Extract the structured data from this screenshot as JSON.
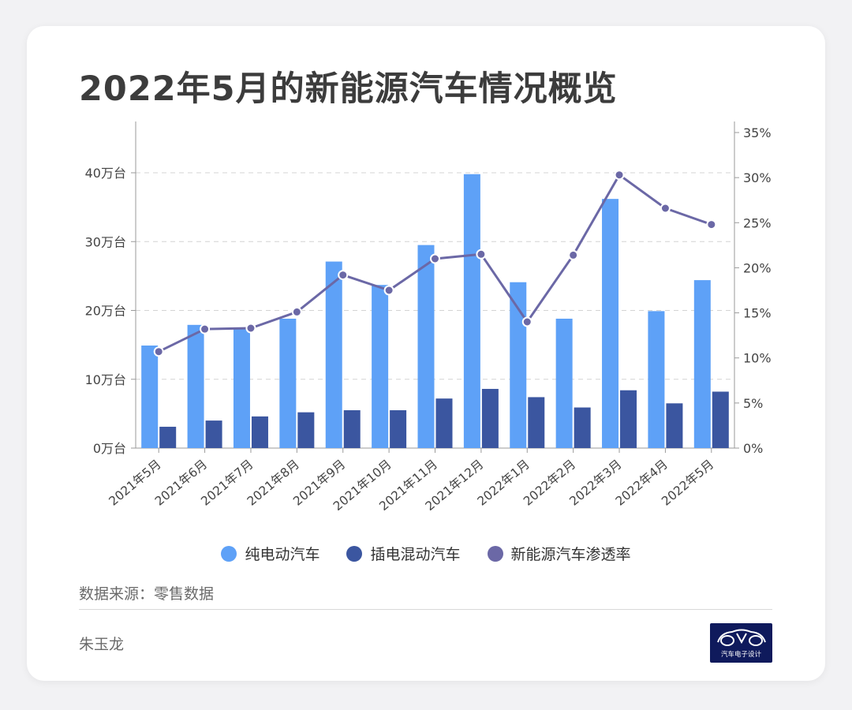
{
  "card": {
    "title": "2022年5月的新能源汽车情况概览",
    "source": "数据来源：零售数据",
    "author": "朱玉龙",
    "logo_text": "汽车电子设计"
  },
  "chart_data": {
    "type": "bar+line",
    "title": "2022年5月的新能源汽车情况概览",
    "categories": [
      "2021年5月",
      "2021年6月",
      "2021年7月",
      "2021年8月",
      "2021年9月",
      "2021年10月",
      "2021年11月",
      "2021年12月",
      "2022年1月",
      "2022年2月",
      "2022年3月",
      "2022年4月",
      "2022年5月"
    ],
    "series": [
      {
        "name": "纯电动汽车",
        "type": "bar",
        "axis": "left",
        "color": "#5ea1f7",
        "values": [
          14.9,
          17.9,
          17.3,
          18.8,
          27.1,
          23.7,
          29.5,
          39.8,
          24.1,
          18.8,
          36.2,
          19.9,
          24.4
        ]
      },
      {
        "name": "插电混动汽车",
        "type": "bar",
        "axis": "left",
        "color": "#3b56a0",
        "values": [
          3.1,
          4.0,
          4.6,
          5.2,
          5.5,
          5.5,
          7.2,
          8.6,
          7.4,
          5.9,
          8.4,
          6.5,
          8.2
        ]
      },
      {
        "name": "新能源汽车渗透率",
        "type": "line",
        "axis": "right",
        "color": "#6b68a6",
        "values": [
          10.7,
          13.2,
          13.3,
          15.1,
          19.2,
          17.5,
          21.0,
          21.5,
          14.0,
          21.4,
          30.3,
          26.6,
          24.8
        ]
      }
    ],
    "y_left": {
      "min": 0,
      "max": 40,
      "ticks": [
        0,
        10,
        20,
        30,
        40
      ],
      "tick_labels": [
        "0万台",
        "10万台",
        "20万台",
        "30万台",
        "40万台"
      ]
    },
    "y_right": {
      "min": 0,
      "max": 35,
      "ticks": [
        0,
        5,
        10,
        15,
        20,
        25,
        30,
        35
      ],
      "tick_labels": [
        "0%",
        "5%",
        "10%",
        "15%",
        "20%",
        "25%",
        "30%",
        "35%"
      ]
    },
    "grid": true,
    "legend_position": "bottom"
  }
}
